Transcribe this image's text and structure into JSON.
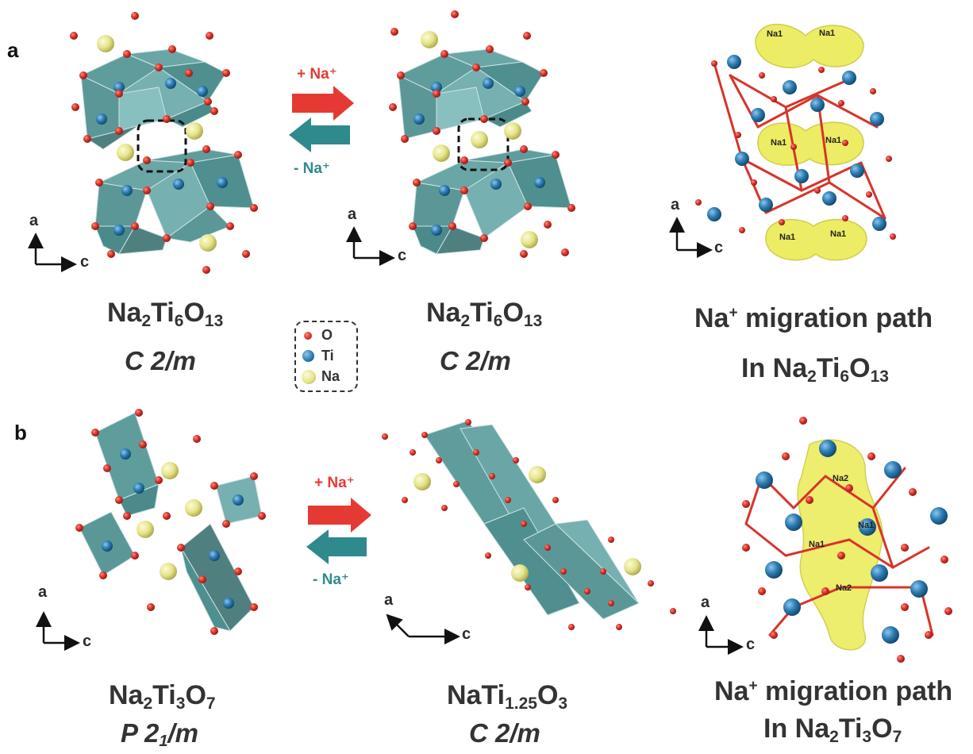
{
  "panels": [
    {
      "letter": "a"
    },
    {
      "letter": "b"
    }
  ],
  "arrows": {
    "plus_na_a": "+ Na⁺",
    "minus_na_a": "- Na⁺",
    "plus_na_b": "+ Na⁺",
    "minus_na_b": "- Na⁺"
  },
  "axes": {
    "a": "a",
    "c": "c"
  },
  "structure_labels": {
    "a1": {
      "formula": [
        "Na",
        "2",
        "Ti",
        "6",
        "O",
        "13"
      ],
      "space_group": "C 2/m"
    },
    "a2": {
      "formula": [
        "Na",
        "2",
        "Ti",
        "6",
        "O",
        "13"
      ],
      "space_group": "C 2/m"
    },
    "a3": {
      "line1": "Na",
      "line1_sup": "+",
      "line1_rest": " migration path",
      "line2": [
        "In Na",
        "2",
        "Ti",
        "6",
        "O",
        "13"
      ]
    },
    "b1": {
      "formula": [
        "Na",
        "2",
        "Ti",
        "3",
        "O",
        "7"
      ],
      "space_group_main": "P 2",
      "space_group_sub": "1",
      "space_group_tail": "/m"
    },
    "b2": {
      "formula": [
        "NaTi",
        "1.25",
        "O",
        "3"
      ],
      "space_group": "C 2/m"
    },
    "b3": {
      "line1": "Na",
      "line1_sup": "+",
      "line1_rest": " migration path",
      "line2": [
        "In Na",
        "2",
        "Ti",
        "3",
        "O",
        "7"
      ]
    }
  },
  "legend": [
    {
      "label": "O",
      "color": "#d8342a"
    },
    {
      "label": "Ti",
      "color": "#2d7db3"
    },
    {
      "label": "Na",
      "color": "#e6e48a"
    }
  ],
  "site_labels": {
    "a3": [
      "Na1",
      "Na1",
      "Na1",
      "Na1",
      "Na1",
      "Na1"
    ],
    "b3": [
      "Na2",
      "Na1",
      "Na1",
      "Na2"
    ]
  },
  "colors": {
    "oxygen": "#d8342a",
    "titanium": "#2d7db3",
    "sodium": "#e6e48a",
    "octahedron": "#5f9d9d",
    "plus_arrow": "#e53a34",
    "minus_arrow": "#2f8a8e",
    "isosurface": "#eaea55"
  }
}
